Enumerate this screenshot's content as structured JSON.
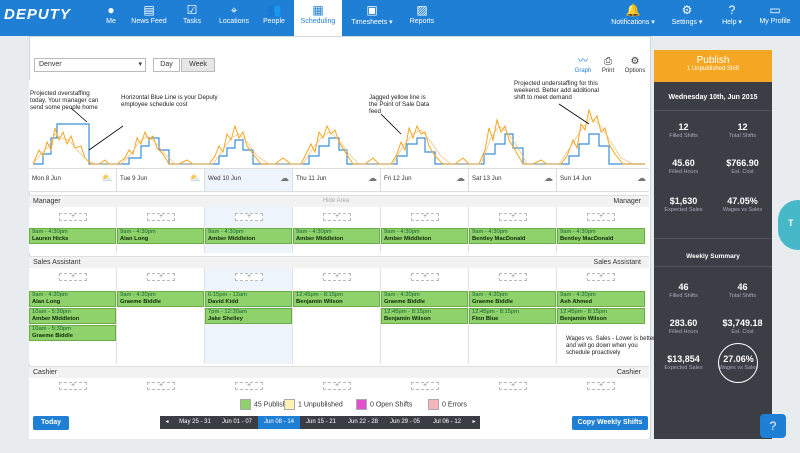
{
  "app": {
    "logo": "DEPUTY"
  },
  "nav": {
    "me": "Me",
    "newsfeed": "News Feed",
    "tasks": "Tasks",
    "locations": "Locations",
    "people": "People",
    "scheduling": "Scheduling",
    "timesheets": "Timesheets ▾",
    "reports": "Reports",
    "notifications": "Notifications ▾",
    "settings": "Settings ▾",
    "help": "Help ▾",
    "profile": "My Profile"
  },
  "toolbar": {
    "location": "Denver",
    "day": "Day",
    "week": "Week",
    "graph": "Graph",
    "print": "Print",
    "options": "Options"
  },
  "annotations": {
    "a1": "Projected overstaffing today. Your manager can send some people home",
    "a2": "Horizontal Blue Line is your Deputy employee schedule cost",
    "a3": "Jagged yellow line is the Point of Sale Data feed",
    "a4": "Projected understaffing for this weekend. Better add additional shift to meet demand",
    "tip": "Wages vs. Sales - Lower is better and will go down when you schedule proactively"
  },
  "days": [
    "Mon 8 Jun",
    "Tue 9 Jun",
    "Wed 10 Jun",
    "Thu 11 Jun",
    "Fri 12 Jun",
    "Sat 13 Jun",
    "Sun 14 Jun"
  ],
  "areas": {
    "manager": "Manager",
    "sales": "Sales Assistant",
    "cashier": "Cashier",
    "hide": "Hide Area"
  },
  "manager_shifts": [
    {
      "t": "9am - 4:30pm",
      "n": "Lauren Hicks"
    },
    {
      "t": "9am - 4:30pm",
      "n": "Alan Long"
    },
    {
      "t": "9am - 4:30pm",
      "n": "Amber Middleton"
    },
    {
      "t": "9am - 4:30pm",
      "n": "Amber Middleton"
    },
    {
      "t": "9am - 4:30pm",
      "n": "Amber Middleton"
    },
    {
      "t": "9am - 4:30pm",
      "n": "Bentley MacDonald"
    },
    {
      "t": "9am - 4:30pm",
      "n": "Bentley MacDonald"
    }
  ],
  "sales_shifts": [
    {
      "t": "9am - 4:30pm",
      "n": "Alan Long"
    },
    {
      "t": "10am - 5:30pm",
      "n": "Amber Middleton"
    },
    {
      "t": "10am - 5:30pm",
      "n": "Graeme Biddle"
    },
    {
      "t": "9am - 4:30pm",
      "n": "Graeme Biddle"
    },
    {
      "t": "6:15pm - 12am",
      "n": "David Kidd"
    },
    {
      "t": "7pm - 12:30am",
      "n": "Jake Shelley"
    },
    {
      "t": "12:45pm - 8:15pm",
      "n": "Benjamin Wilson"
    },
    {
      "t": "9am - 4:30pm",
      "n": "Graeme Biddle"
    },
    {
      "t": "12:45pm - 8:15pm",
      "n": "Benjamin Wilson"
    },
    {
      "t": "12:45pm - 8:15pm",
      "n": "Finn Blue"
    },
    {
      "t": "9am - 4:30pm",
      "n": "Graeme Biddle"
    },
    {
      "t": "9am - 4:30pm",
      "n": "Ash Ahmed"
    },
    {
      "t": "12:45pm - 8:15pm",
      "n": "Benjamin Wilson"
    }
  ],
  "panel": {
    "publish": "Publish",
    "unpublished": "1 Unpublished Shift",
    "date": "Wednesday 10th, Jun 2015",
    "d_filled": "12",
    "d_filled_k": "Filled Shifts",
    "d_total": "12",
    "d_total_k": "Total Shifts",
    "d_hours": "45.60",
    "d_hours_k": "Filled Hours",
    "d_cost": "$766.90",
    "d_cost_k": "Est. Cost",
    "d_sales": "$1,630",
    "d_sales_k": "Expected Sales",
    "d_wvs": "47.05%",
    "d_wvs_k": "Wages vs Sales",
    "weekly": "Weekly Summary",
    "w_filled": "46",
    "w_filled_k": "Filled Shifts",
    "w_total": "46",
    "w_total_k": "Total Shifts",
    "w_hours": "283.60",
    "w_hours_k": "Filled Hours",
    "w_cost": "$3,749.18",
    "w_cost_k": "Est. Cost",
    "w_sales": "$13,854",
    "w_sales_k": "Expected Sales",
    "w_wvs": "27.06%",
    "w_wvs_k": "Wages vs Sales"
  },
  "legend": {
    "published": "45 Published",
    "unpublished": "1 Unpublished",
    "open": "0 Open Shifts",
    "errors": "0 Errors"
  },
  "footer": {
    "today": "Today",
    "copy": "Copy Weekly Shifts"
  },
  "weeks": [
    "◂",
    "May 25 - 31",
    "Jun 01 - 07",
    "Jun 08 - 14",
    "Jun 15 - 21",
    "Jun 22 - 28",
    "Jun 29 - 05",
    "Jul 06 - 12",
    "▸"
  ],
  "colors": {
    "brand": "#1f7fd4",
    "publish": "#f5a623",
    "shift": "#8fd16a",
    "panel": "#3b3e45"
  }
}
